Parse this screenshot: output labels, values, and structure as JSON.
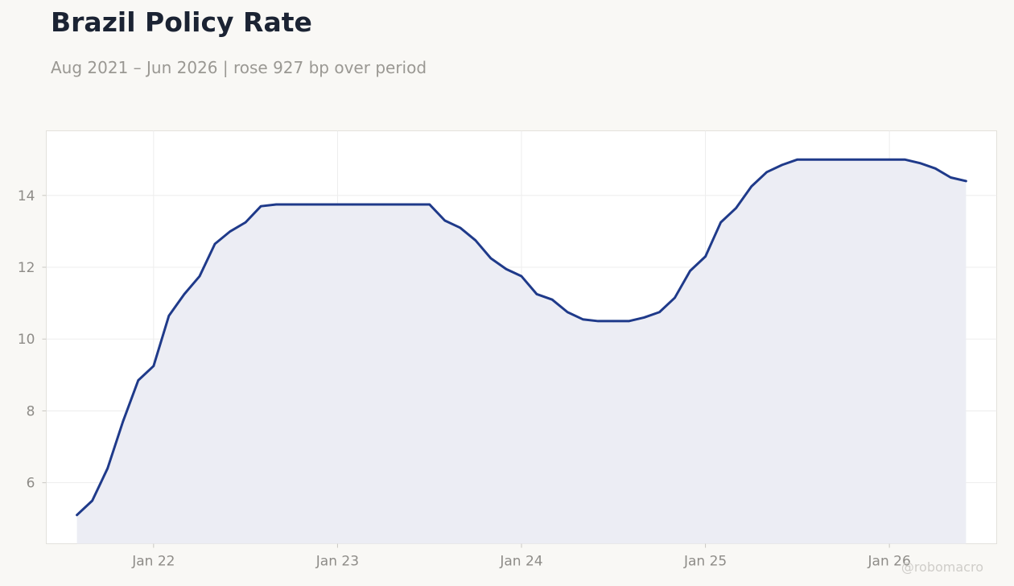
{
  "header": {
    "title": "Brazil Policy Rate",
    "subtitle": "Aug 2021 – Jun 2026 | rose 927 bp over period"
  },
  "watermark": "@robomacro",
  "colors": {
    "line": "#1f3a8a",
    "fill": "#ecedf4",
    "background": "#f9f8f5",
    "plot_background": "#ffffff",
    "grid": "#ededed"
  },
  "chart_data": {
    "type": "area",
    "title": "Brazil Policy Rate",
    "xlabel": "",
    "ylabel": "",
    "grid": true,
    "legend": "none",
    "x_ticks": [
      "Jan 22",
      "Jan 23",
      "Jan 24",
      "Jan 25",
      "Jan 26"
    ],
    "y_ticks": [
      6,
      8,
      10,
      12,
      14
    ],
    "xlim": [
      "2021-06",
      "2026-08"
    ],
    "ylim": [
      4.3,
      15.8
    ],
    "series": [
      {
        "x": [
          "2021-08",
          "2021-09",
          "2021-10",
          "2021-11",
          "2021-12",
          "2022-01",
          "2022-02",
          "2022-03",
          "2022-04",
          "2022-05",
          "2022-06",
          "2022-07",
          "2022-08",
          "2022-09",
          "2022-10",
          "2022-11",
          "2022-12",
          "2023-01",
          "2023-02",
          "2023-03",
          "2023-04",
          "2023-05",
          "2023-06",
          "2023-07",
          "2023-08",
          "2023-09",
          "2023-10",
          "2023-11",
          "2023-12",
          "2024-01",
          "2024-02",
          "2024-03",
          "2024-04",
          "2024-05",
          "2024-06",
          "2024-07",
          "2024-08",
          "2024-09",
          "2024-10",
          "2024-11",
          "2024-12",
          "2025-01",
          "2025-02",
          "2025-03",
          "2025-04",
          "2025-05",
          "2025-06",
          "2025-07",
          "2025-08",
          "2025-09",
          "2025-10",
          "2025-11",
          "2025-12",
          "2026-01",
          "2026-02",
          "2026-03",
          "2026-04",
          "2026-05",
          "2026-06"
        ],
        "values": [
          5.1,
          5.5,
          6.4,
          7.7,
          8.85,
          9.25,
          10.65,
          11.25,
          11.75,
          12.65,
          13.0,
          13.25,
          13.7,
          13.75,
          13.75,
          13.75,
          13.75,
          13.75,
          13.75,
          13.75,
          13.75,
          13.75,
          13.75,
          13.75,
          13.3,
          13.1,
          12.75,
          12.25,
          11.95,
          11.75,
          11.25,
          11.1,
          10.75,
          10.55,
          10.5,
          10.5,
          10.5,
          10.6,
          10.75,
          11.15,
          11.9,
          12.3,
          13.25,
          13.65,
          14.25,
          14.65,
          14.85,
          15.0,
          15.0,
          15.0,
          15.0,
          15.0,
          15.0,
          15.0,
          15.0,
          14.9,
          14.75,
          14.5,
          14.4
        ]
      }
    ]
  }
}
